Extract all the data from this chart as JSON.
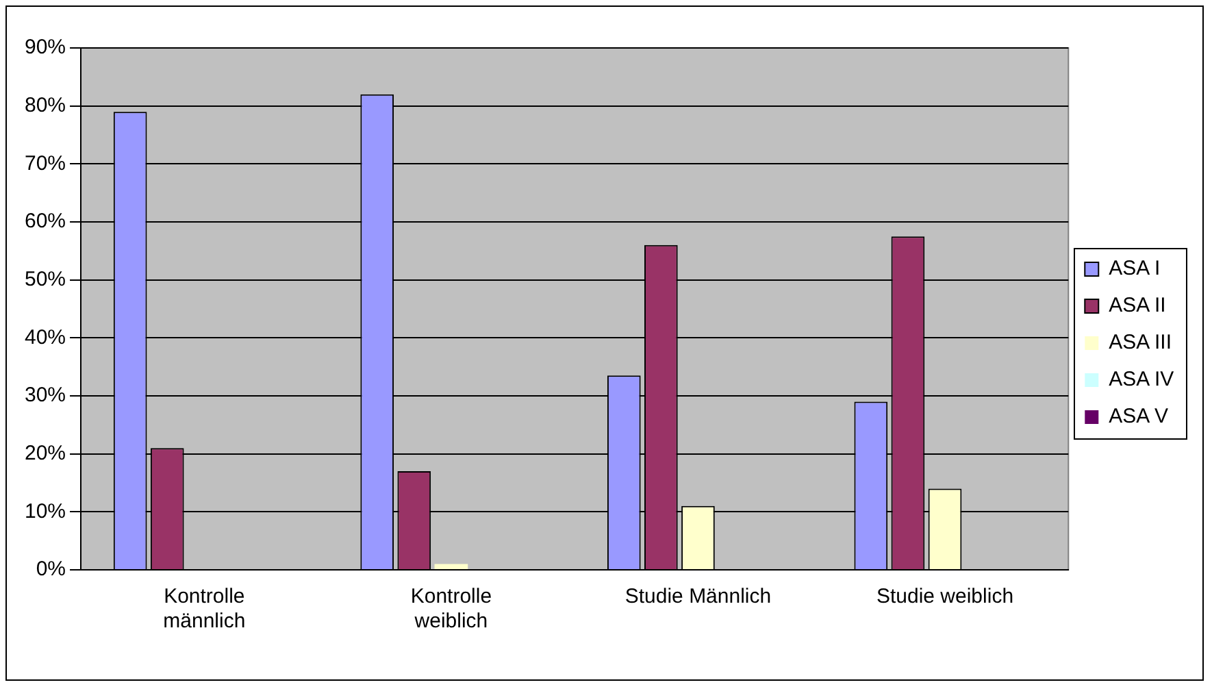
{
  "chart_data": {
    "type": "bar",
    "categories": [
      "Kontrolle männlich",
      "Kontrolle weiblich",
      "Studie Männlich",
      "Studie weiblich"
    ],
    "series": [
      {
        "name": "ASA I",
        "color": "#9999ff",
        "values": [
          79,
          82,
          33.5,
          29
        ]
      },
      {
        "name": "ASA II",
        "color": "#993366",
        "values": [
          21,
          17,
          56,
          57.5
        ]
      },
      {
        "name": "ASA III",
        "color": "#ffffcc",
        "values": [
          0,
          1,
          11,
          14
        ]
      },
      {
        "name": "ASA IV",
        "color": "#ccffff",
        "values": [
          0,
          0,
          0,
          0
        ]
      },
      {
        "name": "ASA V",
        "color": "#660066",
        "values": [
          0,
          0,
          0,
          0
        ]
      }
    ],
    "ylim": [
      0,
      90
    ],
    "yticks": [
      {
        "value": 0,
        "label": "0%"
      },
      {
        "value": 10,
        "label": "10%"
      },
      {
        "value": 20,
        "label": "20%"
      },
      {
        "value": 30,
        "label": "30%"
      },
      {
        "value": 40,
        "label": "40%"
      },
      {
        "value": 50,
        "label": "50%"
      },
      {
        "value": 60,
        "label": "60%"
      },
      {
        "value": 70,
        "label": "70%"
      },
      {
        "value": 80,
        "label": "80%"
      },
      {
        "value": 90,
        "label": "90%"
      }
    ],
    "grid": "y",
    "legend": "right"
  }
}
